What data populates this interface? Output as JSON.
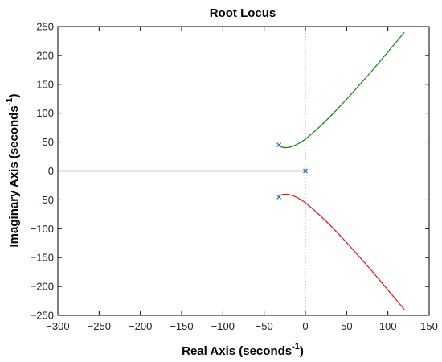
{
  "chart_data": {
    "type": "line",
    "title": "Root Locus",
    "xlabel": "Real Axis (seconds",
    "ylabel": "Imaginary Axis (seconds",
    "axis_unit_exponent": "-1",
    "xlim": [
      -300,
      150
    ],
    "ylim": [
      -250,
      250
    ],
    "xticks": [
      -300,
      -250,
      -200,
      -150,
      -100,
      -50,
      0,
      50,
      100,
      150
    ],
    "yticks": [
      -250,
      -200,
      -150,
      -100,
      -50,
      0,
      50,
      100,
      150,
      200,
      250
    ],
    "xtick_labels": [
      "−300",
      "−250",
      "−200",
      "−150",
      "−100",
      "−50",
      "0",
      "50",
      "100",
      "150"
    ],
    "ytick_labels": [
      "−250",
      "−200",
      "−150",
      "−100",
      "−50",
      "0",
      "50",
      "100",
      "150",
      "200",
      "250"
    ],
    "grid": false,
    "zero_lines": "dotted",
    "series": [
      {
        "color": "#1f8a1f",
        "x": [
          -32,
          -30,
          -28,
          -26,
          -22,
          -18,
          -14,
          -10,
          -5,
          0,
          10,
          20,
          30,
          40,
          50,
          60,
          70,
          80,
          90,
          100,
          110,
          120
        ],
        "y": [
          45,
          42,
          41,
          40.5,
          40.5,
          41.5,
          43.5,
          46,
          50,
          55,
          67,
          80,
          94,
          109,
          124,
          140,
          156,
          172,
          189,
          206,
          223,
          240
        ]
      },
      {
        "color": "#e02020",
        "x": [
          -32,
          -30,
          -28,
          -26,
          -22,
          -18,
          -14,
          -10,
          -5,
          0,
          10,
          20,
          30,
          40,
          50,
          60,
          70,
          80,
          90,
          100,
          110,
          120
        ],
        "y": [
          -45,
          -42,
          -41,
          -40.5,
          -40.5,
          -41.5,
          -43.5,
          -46,
          -50,
          -55,
          -67,
          -80,
          -94,
          -109,
          -124,
          -140,
          -156,
          -172,
          -189,
          -206,
          -223,
          -240
        ]
      },
      {
        "color": "#2020e0",
        "x": [
          -300,
          0
        ],
        "y": [
          0,
          0
        ]
      }
    ],
    "poles": [
      {
        "x": -32,
        "y": 45
      },
      {
        "x": -32,
        "y": -45
      },
      {
        "x": 0,
        "y": 0
      }
    ],
    "colors": {
      "axis": "#000000",
      "zero_line": "#999999",
      "pole_marker": "#1f6fbf"
    }
  }
}
